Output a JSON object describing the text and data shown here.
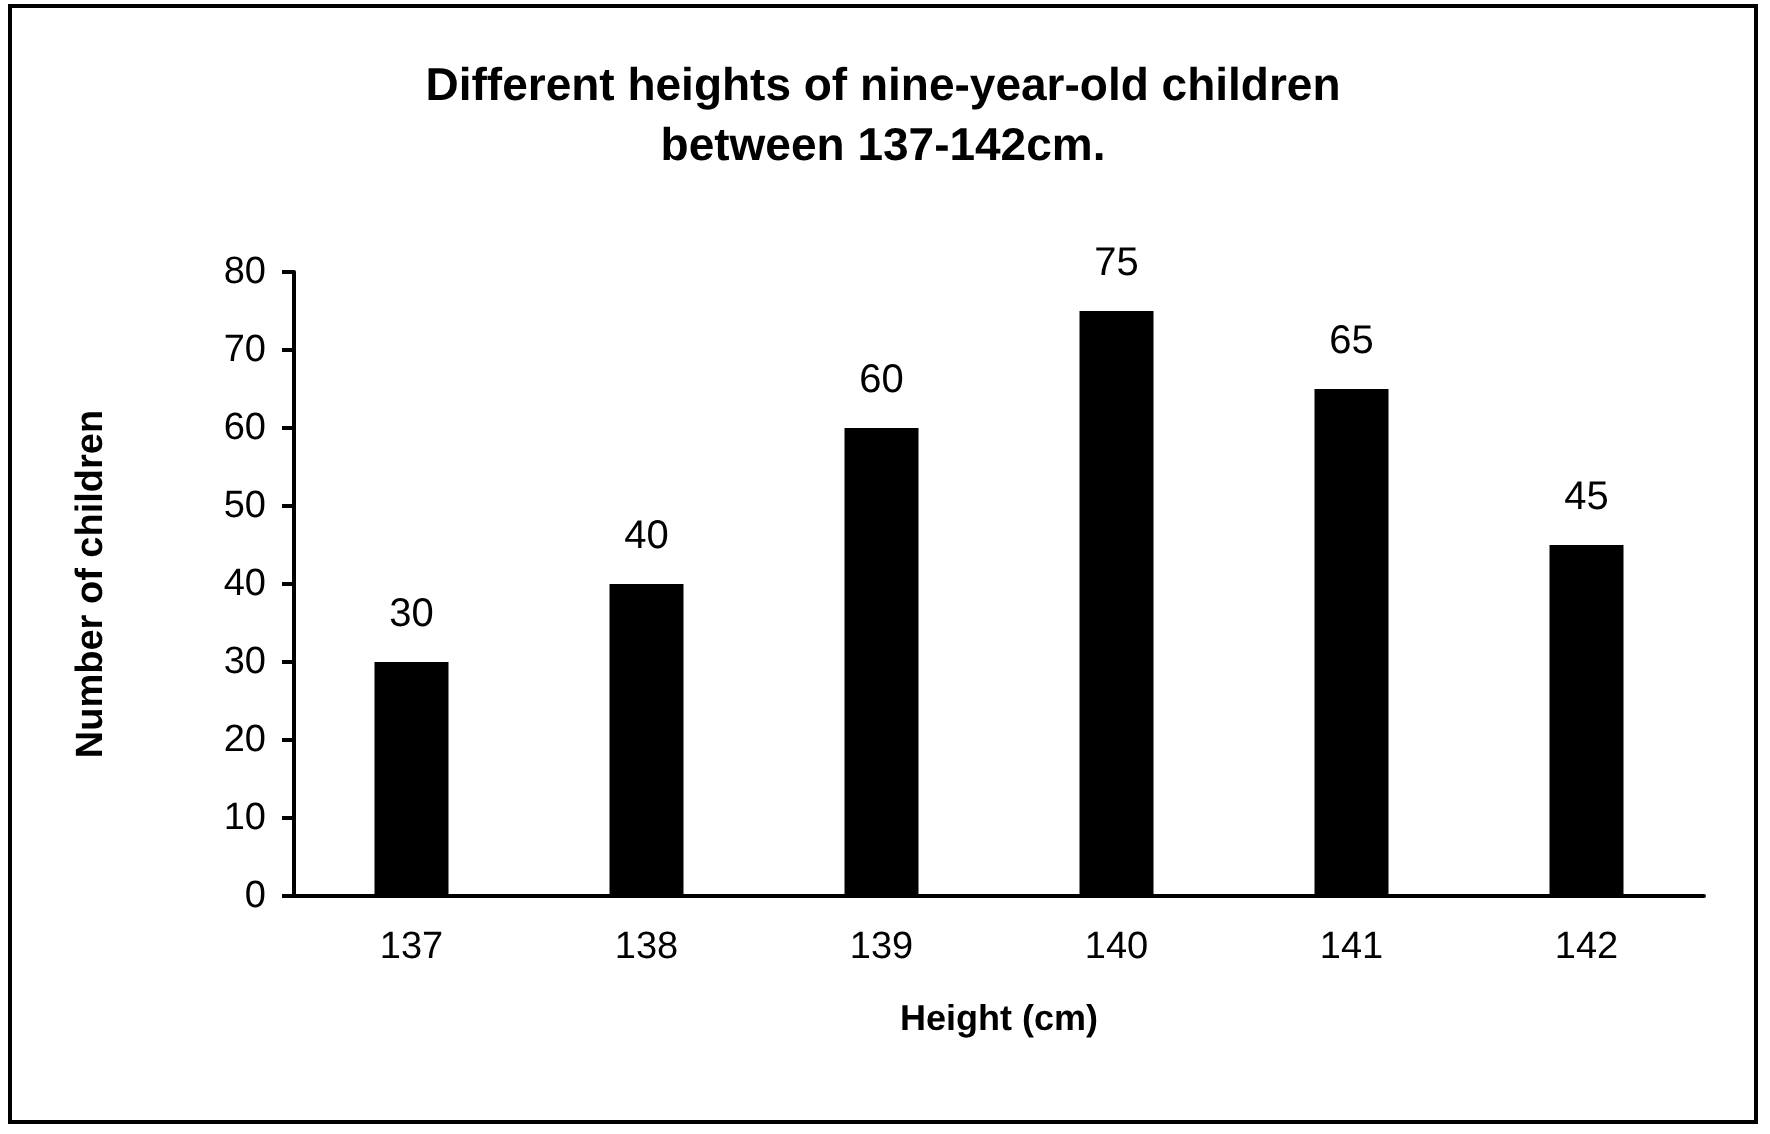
{
  "chart_data": {
    "type": "bar",
    "title": "Different heights of nine-year-old children\nbetween 137-142cm.",
    "xlabel": "Height (cm)",
    "ylabel": "Number of children",
    "categories": [
      "137",
      "138",
      "139",
      "140",
      "141",
      "142"
    ],
    "values": [
      30,
      40,
      60,
      75,
      65,
      45
    ],
    "color": "#000000",
    "ylim": [
      0,
      80
    ],
    "yticks": [
      0,
      10,
      20,
      30,
      40,
      50,
      60,
      70,
      80
    ],
    "grid": false,
    "data_labels": true
  }
}
